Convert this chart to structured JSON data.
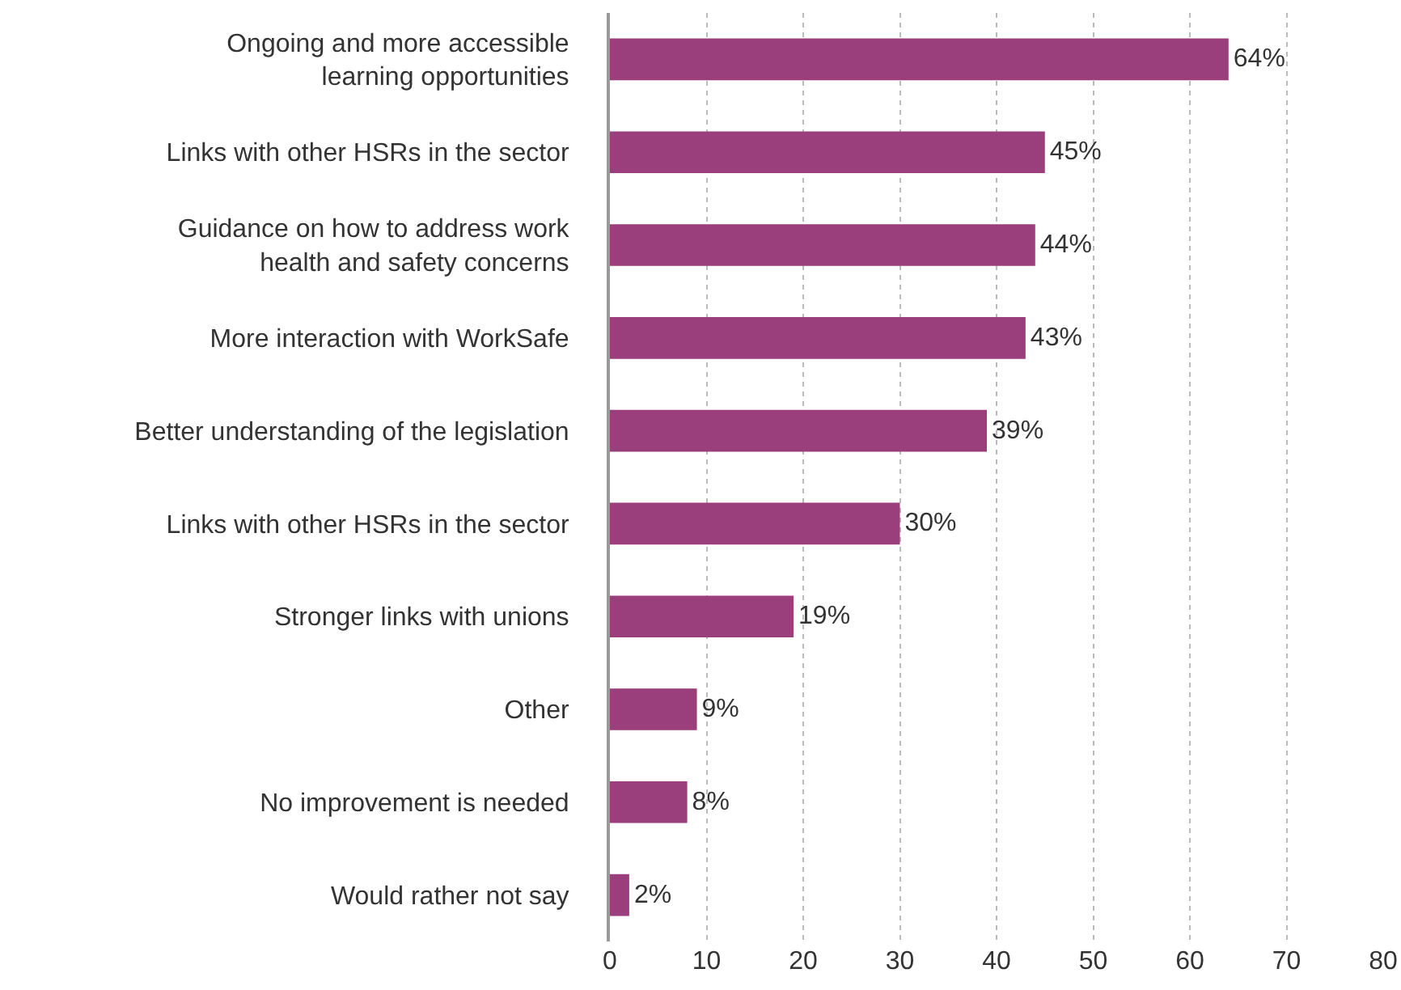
{
  "chart_data": {
    "type": "bar",
    "orientation": "horizontal",
    "categories": [
      "Ongoing and more accessible learning opportunities",
      "Links with other HSRs in the sector",
      "Guidance on how to address work health and safety concerns",
      "More interaction with WorkSafe",
      "Better understanding of the legislation",
      "Links with other HSRs in the sector",
      "Stronger links with unions",
      "Other",
      "No improvement is needed",
      "Would rather not say"
    ],
    "values": [
      64,
      45,
      44,
      43,
      39,
      30,
      19,
      9,
      8,
      2
    ],
    "value_labels": [
      "64%",
      "45%",
      "44%",
      "43%",
      "39%",
      "30%",
      "19%",
      "9%",
      "8%",
      "2%"
    ],
    "color": "#9b3f7c",
    "xlim": [
      0,
      80
    ],
    "xticks": [
      0,
      10,
      20,
      30,
      40,
      50,
      60,
      70,
      80
    ],
    "grid": "x"
  }
}
